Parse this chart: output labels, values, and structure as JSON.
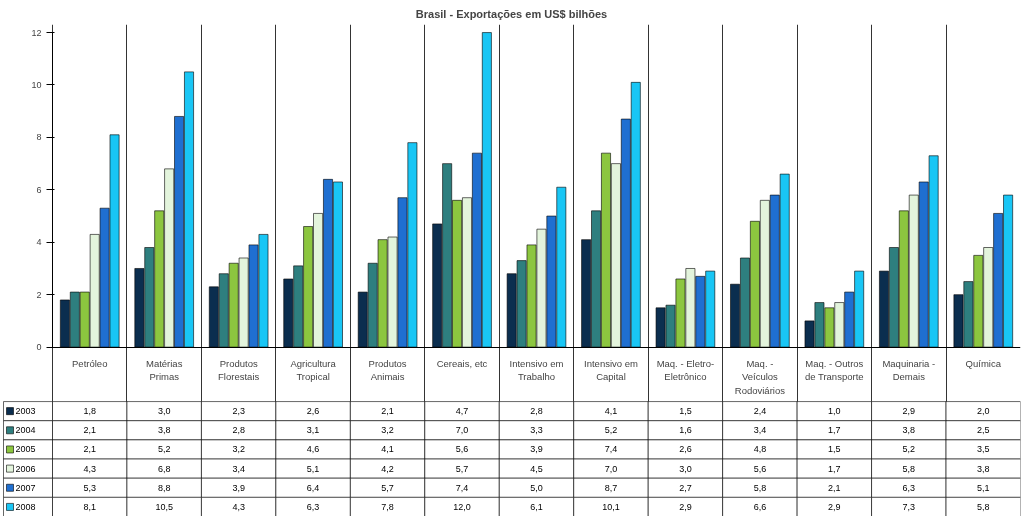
{
  "chart_data": {
    "type": "bar",
    "title": "Brasil - Exportações em US$ bilhões",
    "categories": [
      "Petróleo",
      "Matérias\nPrimas",
      "Produtos\nFlorestais",
      "Agricultura\nTropical",
      "Produtos\nAnimais",
      "Cereais, etc",
      "Intensivo em\nTrabalho",
      "Intensivo em\nCapital",
      "Maq. - Eletro-\nEletrônico",
      "Maq. -\nVeículos\nRodoviários",
      "Maq. - Outros\nde Transporte",
      "Maquinaria -\nDemais",
      "Química"
    ],
    "series": [
      {
        "name": "2003",
        "color": "#0b2e4f",
        "values": [
          1.8,
          3.0,
          2.3,
          2.6,
          2.1,
          4.7,
          2.8,
          4.1,
          1.5,
          2.4,
          1.0,
          2.9,
          2.0
        ],
        "value_labels": [
          "1,8",
          "3,0",
          "2,3",
          "2,6",
          "2,1",
          "4,7",
          "2,8",
          "4,1",
          "1,5",
          "2,4",
          "1,0",
          "2,9",
          "2,0"
        ]
      },
      {
        "name": "2004",
        "color": "#2e7f7f",
        "values": [
          2.1,
          3.8,
          2.8,
          3.1,
          3.2,
          7.0,
          3.3,
          5.2,
          1.6,
          3.4,
          1.7,
          3.8,
          2.5
        ],
        "value_labels": [
          "2,1",
          "3,8",
          "2,8",
          "3,1",
          "3,2",
          "7,0",
          "3,3",
          "5,2",
          "1,6",
          "3,4",
          "1,7",
          "3,8",
          "2,5"
        ]
      },
      {
        "name": "2005",
        "color": "#8cc63f",
        "values": [
          2.1,
          5.2,
          3.2,
          4.6,
          4.1,
          5.6,
          3.9,
          7.4,
          2.6,
          4.8,
          1.5,
          5.2,
          3.5
        ],
        "value_labels": [
          "2,1",
          "5,2",
          "3,2",
          "4,6",
          "4,1",
          "5,6",
          "3,9",
          "7,4",
          "2,6",
          "4,8",
          "1,5",
          "5,2",
          "3,5"
        ]
      },
      {
        "name": "2006",
        "color": "#e3f4dc",
        "values": [
          4.3,
          6.8,
          3.4,
          5.1,
          4.2,
          5.7,
          4.5,
          7.0,
          3.0,
          5.6,
          1.7,
          5.8,
          3.8
        ],
        "value_labels": [
          "4,3",
          "6,8",
          "3,4",
          "5,1",
          "4,2",
          "5,7",
          "4,5",
          "7,0",
          "3,0",
          "5,6",
          "1,7",
          "5,8",
          "3,8"
        ]
      },
      {
        "name": "2007",
        "color": "#1f6fd1",
        "values": [
          5.3,
          8.8,
          3.9,
          6.4,
          5.7,
          7.4,
          5.0,
          8.7,
          2.7,
          5.8,
          2.1,
          6.3,
          5.1
        ],
        "value_labels": [
          "5,3",
          "8,8",
          "3,9",
          "6,4",
          "5,7",
          "7,4",
          "5,0",
          "8,7",
          "2,7",
          "5,8",
          "2,1",
          "6,3",
          "5,1"
        ]
      },
      {
        "name": "2008",
        "color": "#19c6f5",
        "values": [
          8.1,
          10.5,
          4.3,
          6.3,
          7.8,
          12.0,
          6.1,
          10.1,
          2.9,
          6.6,
          2.9,
          7.3,
          5.8
        ],
        "value_labels": [
          "8,1",
          "10,5",
          "4,3",
          "6,3",
          "7,8",
          "12,0",
          "6,1",
          "10,1",
          "2,9",
          "6,6",
          "2,9",
          "7,3",
          "5,8"
        ]
      }
    ],
    "ylim": [
      0,
      12
    ],
    "yticks": [
      0,
      2,
      4,
      6,
      8,
      10,
      12
    ],
    "grid": "x",
    "legend": "bottom"
  }
}
